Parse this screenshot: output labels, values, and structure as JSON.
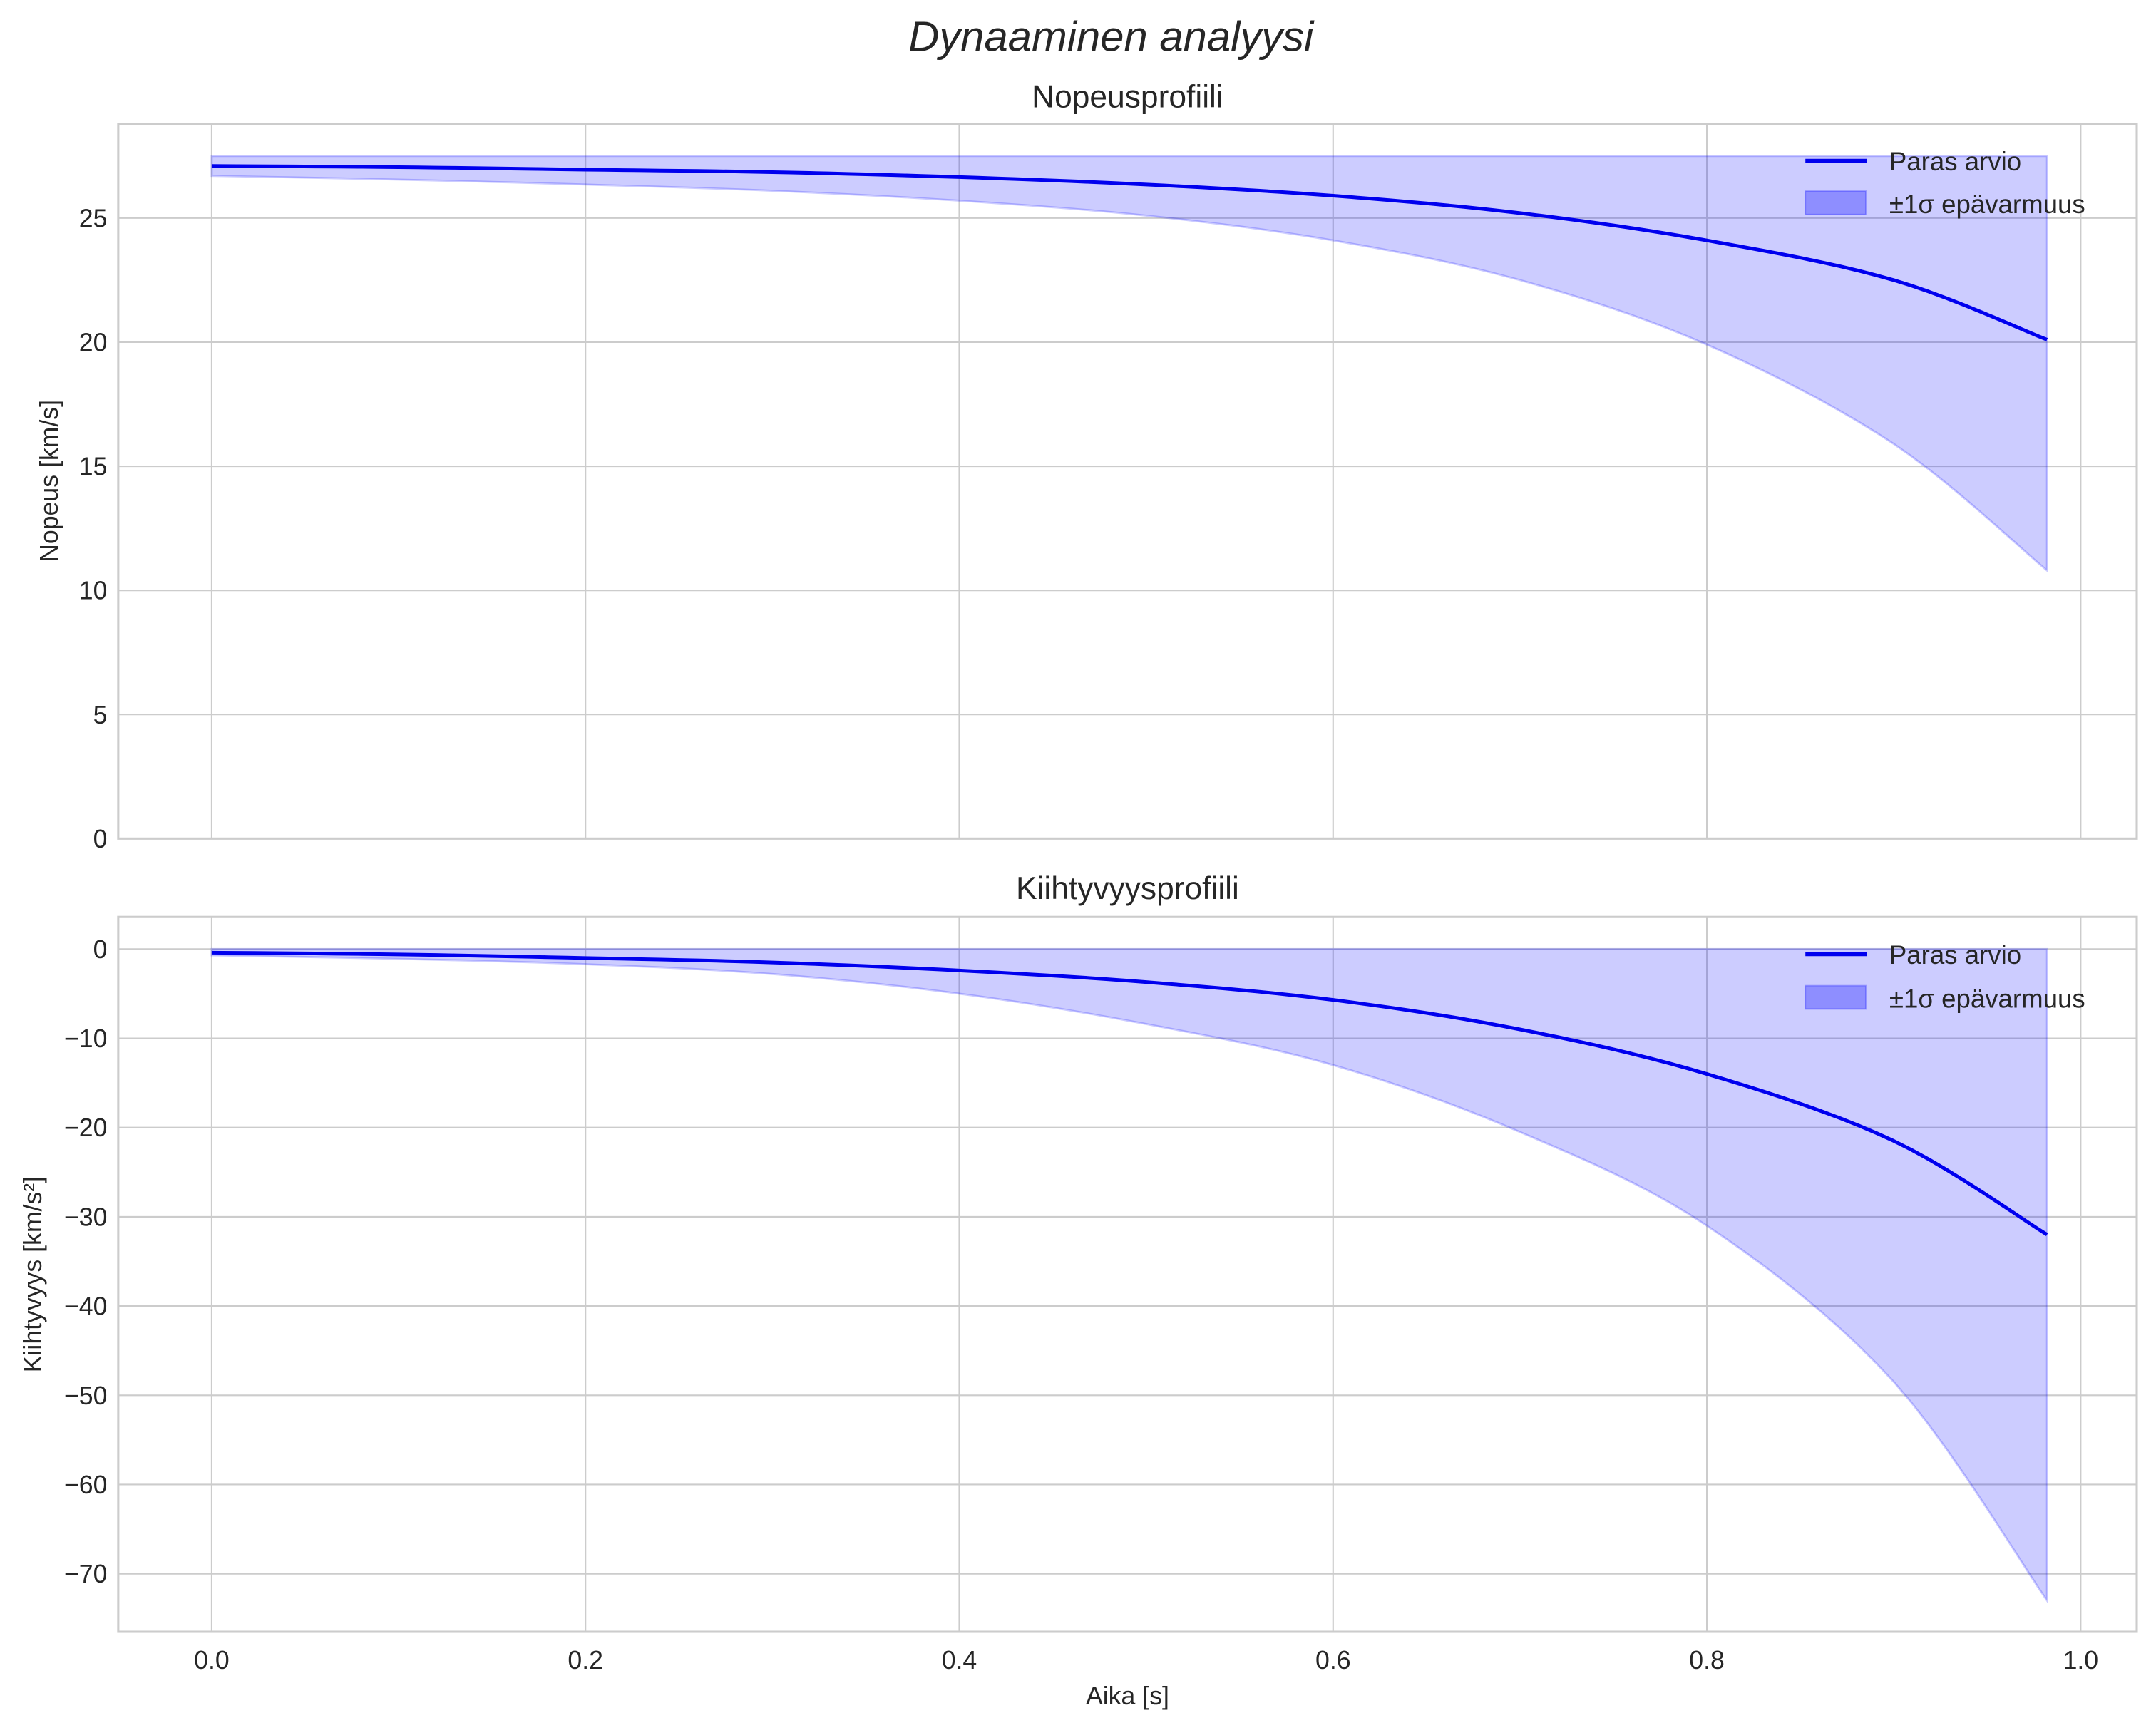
{
  "figure": {
    "suptitle": "Dynaaminen analyysi",
    "xlabel": "Aika [s]"
  },
  "colors": {
    "line": "#0000ee",
    "band": "#0000ff",
    "band_alpha": 0.2,
    "grid": "#cccccc",
    "text": "#262626"
  },
  "legend": {
    "line_label": "Paras arvio",
    "band_label": "±1σ epävarmuus"
  },
  "chart_data": [
    {
      "type": "line",
      "title": "Nopeusprofiili",
      "xlabel": "",
      "ylabel": "Nopeus [km/s]",
      "xlim": [
        -0.05,
        1.03
      ],
      "ylim": [
        0,
        28.8
      ],
      "xticks": [
        "0.0",
        "0.2",
        "0.4",
        "0.6",
        "0.8",
        "1.0"
      ],
      "yticks": [
        "0",
        "5",
        "10",
        "15",
        "20",
        "25"
      ],
      "ytick_values": [
        0,
        5,
        10,
        15,
        20,
        25
      ],
      "grid": true,
      "legend_position": "upper right",
      "x": [
        0,
        0.1,
        0.2,
        0.3,
        0.4,
        0.5,
        0.6,
        0.7,
        0.8,
        0.9,
        0.982
      ],
      "series": [
        {
          "name": "Paras arvio",
          "kind": "line",
          "values": [
            27.1,
            27.05,
            26.95,
            26.85,
            26.65,
            26.35,
            25.9,
            25.2,
            24.1,
            22.5,
            20.1
          ]
        },
        {
          "name": "±1σ epävarmuus (alaraja)",
          "kind": "band-lower",
          "values": [
            26.7,
            26.55,
            26.35,
            26.1,
            25.7,
            25.1,
            24.1,
            22.5,
            19.9,
            15.9,
            10.8
          ]
        },
        {
          "name": "±1σ epävarmuus (yläraja)",
          "kind": "band-upper",
          "values": [
            27.5,
            27.5,
            27.5,
            27.5,
            27.5,
            27.5,
            27.5,
            27.5,
            27.5,
            27.5,
            27.5
          ]
        }
      ]
    },
    {
      "type": "line",
      "title": "Kiihtyvyysprofiili",
      "xlabel": "Aika [s]",
      "ylabel": "Kiihtyvyys [km/s²]",
      "xlim": [
        -0.05,
        1.03
      ],
      "ylim": [
        -76.5,
        3.6
      ],
      "xticks": [
        "0.0",
        "0.2",
        "0.4",
        "0.6",
        "0.8",
        "1.0"
      ],
      "yticks": [
        "0",
        "−10",
        "−20",
        "−30",
        "−40",
        "−50",
        "−60",
        "−70"
      ],
      "ytick_values": [
        0,
        -10,
        -20,
        -30,
        -40,
        -50,
        -60,
        -70
      ],
      "grid": true,
      "legend_position": "upper right",
      "x": [
        0,
        0.1,
        0.2,
        0.3,
        0.4,
        0.5,
        0.6,
        0.7,
        0.8,
        0.9,
        0.982
      ],
      "series": [
        {
          "name": "Paras arvio",
          "kind": "line",
          "values": [
            -0.4,
            -0.6,
            -1.0,
            -1.5,
            -2.4,
            -3.7,
            -5.7,
            -9.0,
            -14.0,
            -21.5,
            -32.0
          ]
        },
        {
          "name": "±1σ epävarmuus (alaraja)",
          "kind": "band-lower",
          "values": [
            -0.7,
            -1.1,
            -1.7,
            -2.8,
            -5.0,
            -8.4,
            -13.0,
            -20.5,
            -31.0,
            -48.5,
            -73.0
          ]
        },
        {
          "name": "±1σ epävarmuus (yläraja)",
          "kind": "band-upper",
          "values": [
            0,
            0,
            0,
            0,
            0,
            0,
            0,
            0,
            0,
            0,
            0
          ]
        }
      ]
    }
  ]
}
